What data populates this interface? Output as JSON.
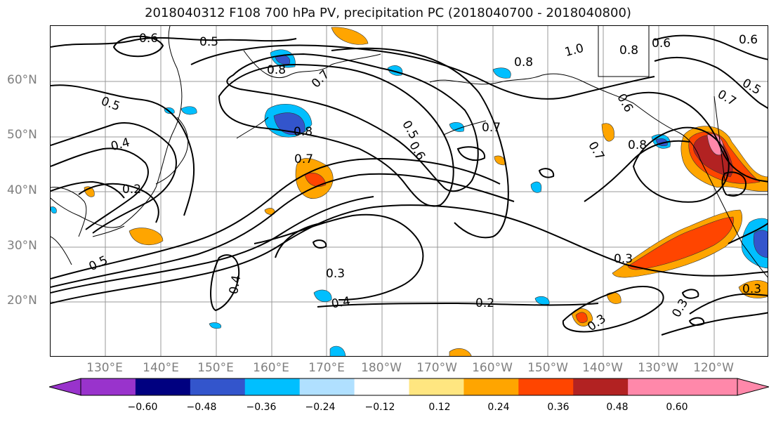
{
  "title": "2018040312 F108 700 hPa PV, precipitation PC (2018040700 - 2018040800)",
  "lat_labels": [
    "60°N",
    "50°N",
    "40°N",
    "30°N",
    "20°N"
  ],
  "lon_labels": [
    "130°E",
    "140°E",
    "150°E",
    "160°E",
    "170°E",
    "180°W",
    "170°W",
    "160°W",
    "150°W",
    "140°W",
    "130°W",
    "120°W"
  ],
  "contour_labels": [
    "0.6",
    "0.5",
    "0.7",
    "0.8",
    "0.8",
    "1.0",
    "0.8",
    "0.6",
    "0.6",
    "0.5",
    "0.5",
    "0.4",
    "0.8",
    "0.5",
    "0.6",
    "0.7",
    "0.6",
    "0.7",
    "0.8",
    "0.2",
    "0.7",
    "0.5",
    "0.3",
    "0.4",
    "0.4",
    "0.2",
    "0.3",
    "0.3",
    "0.3",
    "0.3",
    "0.7"
  ],
  "colorbar": {
    "ticks": [
      "−0.60",
      "−0.48",
      "−0.36",
      "−0.24",
      "−0.12",
      "0.12",
      "0.24",
      "0.36",
      "0.48",
      "0.60"
    ],
    "colors": [
      "#9933cc",
      "#000080",
      "#3355cc",
      "#00bfff",
      "#b0e0ff",
      "#ffffff",
      "#ffe680",
      "#ffa500",
      "#ff4500",
      "#b22222",
      "#ff88aa",
      "#ff88aa"
    ],
    "under_color": "#9933cc",
    "over_color": "#ff88aa"
  }
}
